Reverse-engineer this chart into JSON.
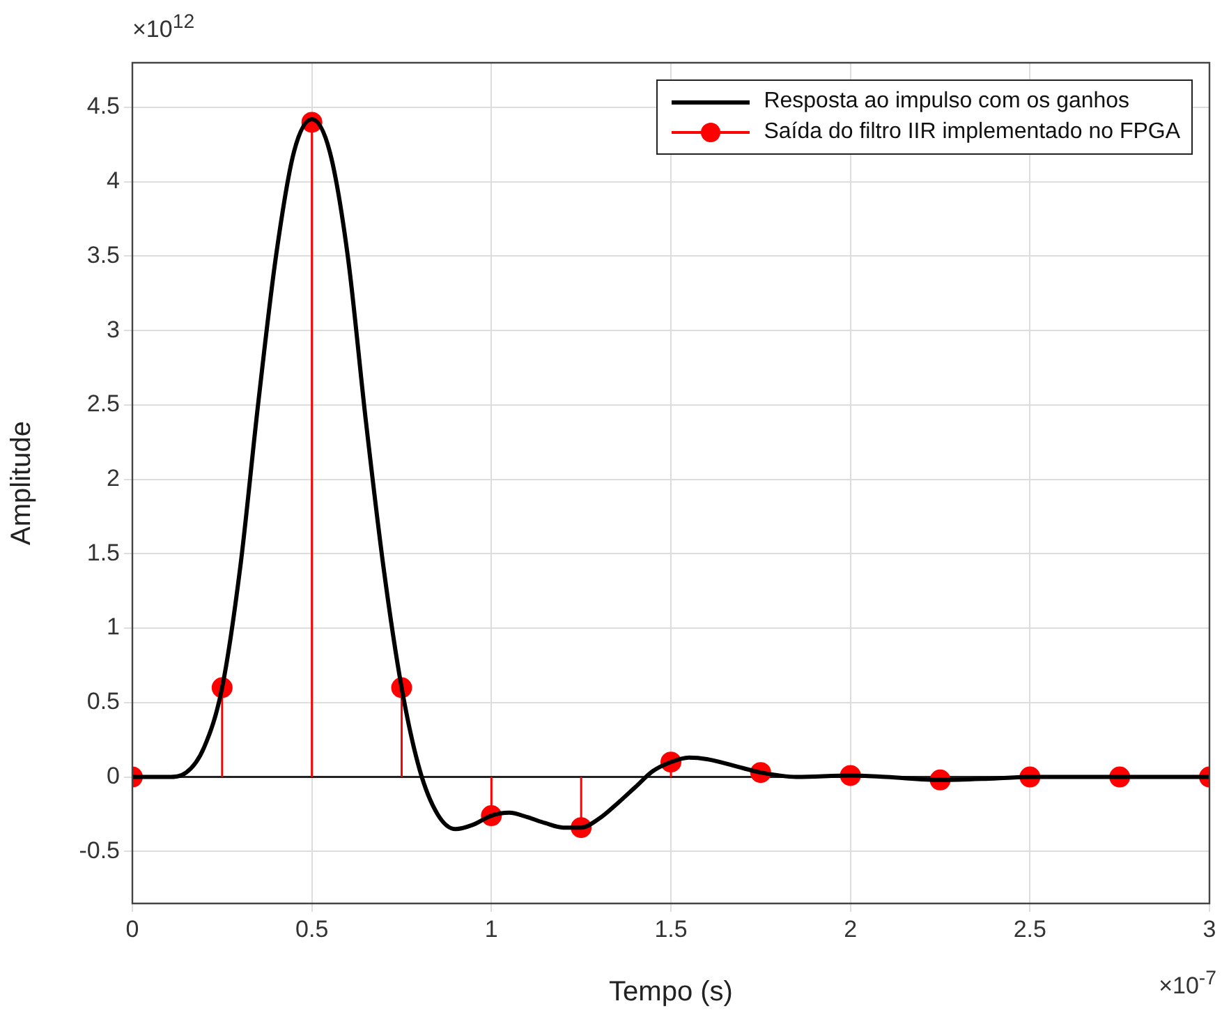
{
  "chart_data": {
    "type": "line",
    "xlabel": "Tempo (s)",
    "ylabel": "Amplitude",
    "annotations": [
      "×10$^{12}$",
      "×10$^{-7}$"
    ],
    "xlim": [
      0,
      3
    ],
    "xticks": [
      0,
      0.5,
      1,
      1.5,
      2,
      2.5,
      3
    ],
    "ylim": [
      -0.85,
      4.8
    ],
    "yticks": [
      -0.5,
      0,
      0.5,
      1,
      1.5,
      2,
      2.5,
      3,
      3.5,
      4,
      4.5
    ],
    "grid": true,
    "legend": "top right",
    "series": [
      {
        "name": "Resposta ao impulso com os ganhos",
        "color": "#000000",
        "marker": "none",
        "line_style": "solid",
        "x": [
          0,
          0.1,
          0.15,
          0.2,
          0.25,
          0.3,
          0.35,
          0.4,
          0.45,
          0.5,
          0.55,
          0.6,
          0.65,
          0.7,
          0.75,
          0.8,
          0.85,
          0.9,
          0.95,
          1.0,
          1.05,
          1.1,
          1.15,
          1.2,
          1.25,
          1.3,
          1.35,
          1.4,
          1.45,
          1.5,
          1.55,
          1.6,
          1.7,
          1.75,
          1.85,
          2.0,
          2.1,
          2.25,
          2.4,
          2.5,
          2.75,
          3.0
        ],
        "values": [
          0,
          0,
          0.03,
          0.2,
          0.6,
          1.4,
          2.5,
          3.5,
          4.2,
          4.42,
          4.2,
          3.5,
          2.4,
          1.4,
          0.6,
          0.05,
          -0.25,
          -0.35,
          -0.32,
          -0.26,
          -0.24,
          -0.27,
          -0.31,
          -0.34,
          -0.34,
          -0.28,
          -0.18,
          -0.07,
          0.04,
          0.1,
          0.13,
          0.12,
          0.06,
          0.03,
          0,
          0.01,
          0,
          -0.02,
          -0.01,
          0,
          0,
          0
        ]
      },
      {
        "name": "Saída do filtro IIR implementado no FPGA",
        "type": "lollipop",
        "color": "#ff0000",
        "marker": "circle",
        "x": [
          0,
          0.25,
          0.5,
          0.75,
          1.0,
          1.25,
          1.5,
          1.75,
          2.0,
          2.25,
          2.5,
          2.75,
          3.0
        ],
        "values": [
          0,
          0.6,
          4.4,
          0.6,
          -0.26,
          -0.34,
          0.1,
          0.03,
          0.01,
          -0.02,
          0,
          0,
          0
        ]
      }
    ]
  }
}
